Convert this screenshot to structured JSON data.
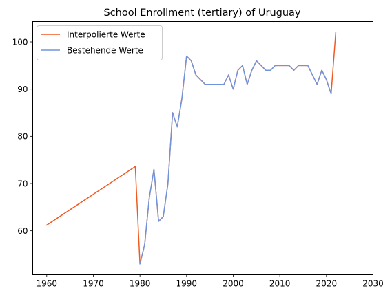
{
  "chart_data": {
    "type": "line",
    "title": "School Enrollment (tertiary) of Uruguay",
    "xlabel": "",
    "ylabel": "",
    "xlim": [
      1957,
      2030
    ],
    "ylim": [
      50.7,
      104.3
    ],
    "xticks": [
      1960,
      1970,
      1980,
      1990,
      2000,
      2010,
      2020,
      2030
    ],
    "yticks": [
      60,
      70,
      80,
      90,
      100
    ],
    "grid": false,
    "legend_position": "top-left",
    "series": [
      {
        "name": "Interpolierte Werte",
        "color": "#f05a22",
        "points": [
          [
            1960,
            61.2
          ],
          [
            1979,
            73.6
          ],
          [
            1980,
            53.0
          ],
          [
            1981,
            57.0
          ],
          [
            1982,
            67.0
          ],
          [
            1983,
            73.0
          ],
          [
            1984,
            62.0
          ],
          [
            1985,
            63.0
          ],
          [
            1986,
            70.0
          ],
          [
            1987,
            85.0
          ],
          [
            1988,
            82.0
          ],
          [
            1989,
            88.0
          ],
          [
            1990,
            97.0
          ],
          [
            1991,
            96.0
          ],
          [
            1992,
            93.0
          ],
          [
            1993,
            92.0
          ],
          [
            1994,
            91.0
          ],
          [
            1995,
            91.0
          ],
          [
            1996,
            91.0
          ],
          [
            1997,
            91.0
          ],
          [
            1998,
            91.0
          ],
          [
            1999,
            93.0
          ],
          [
            2000,
            90.0
          ],
          [
            2001,
            94.0
          ],
          [
            2002,
            95.0
          ],
          [
            2003,
            91.0
          ],
          [
            2004,
            94.0
          ],
          [
            2005,
            96.0
          ],
          [
            2006,
            95.0
          ],
          [
            2007,
            94.0
          ],
          [
            2008,
            94.0
          ],
          [
            2009,
            95.0
          ],
          [
            2010,
            95.0
          ],
          [
            2011,
            95.0
          ],
          [
            2012,
            95.0
          ],
          [
            2013,
            94.0
          ],
          [
            2014,
            95.0
          ],
          [
            2015,
            95.0
          ],
          [
            2016,
            95.0
          ],
          [
            2017,
            93.0
          ],
          [
            2018,
            91.0
          ],
          [
            2019,
            94.0
          ],
          [
            2020,
            92.0
          ],
          [
            2021,
            89.0
          ],
          [
            2022,
            102.0
          ]
        ]
      },
      {
        "name": "Bestehende Werte",
        "color": "#7094dd",
        "points": [
          [
            1980,
            53.0
          ],
          [
            1981,
            57.0
          ],
          [
            1982,
            67.0
          ],
          [
            1983,
            73.0
          ],
          [
            1984,
            62.0
          ],
          [
            1985,
            63.0
          ],
          [
            1986,
            70.0
          ],
          [
            1987,
            85.0
          ],
          [
            1988,
            82.0
          ],
          [
            1989,
            88.0
          ],
          [
            1990,
            97.0
          ],
          [
            1991,
            96.0
          ],
          [
            1992,
            93.0
          ],
          [
            1993,
            92.0
          ],
          [
            1994,
            91.0
          ],
          [
            1995,
            91.0
          ],
          [
            1996,
            91.0
          ],
          [
            1997,
            91.0
          ],
          [
            1998,
            91.0
          ],
          [
            1999,
            93.0
          ],
          [
            2000,
            90.0
          ],
          [
            2001,
            94.0
          ],
          [
            2002,
            95.0
          ],
          [
            2003,
            91.0
          ],
          [
            2004,
            94.0
          ],
          [
            2005,
            96.0
          ],
          [
            2006,
            95.0
          ],
          [
            2007,
            94.0
          ],
          [
            2008,
            94.0
          ],
          [
            2009,
            95.0
          ],
          [
            2010,
            95.0
          ],
          [
            2011,
            95.0
          ],
          [
            2012,
            95.0
          ],
          [
            2013,
            94.0
          ],
          [
            2014,
            95.0
          ],
          [
            2015,
            95.0
          ],
          [
            2016,
            95.0
          ],
          [
            2017,
            93.0
          ],
          [
            2018,
            91.0
          ],
          [
            2019,
            94.0
          ],
          [
            2020,
            92.0
          ],
          [
            2021,
            89.0
          ]
        ]
      }
    ]
  }
}
